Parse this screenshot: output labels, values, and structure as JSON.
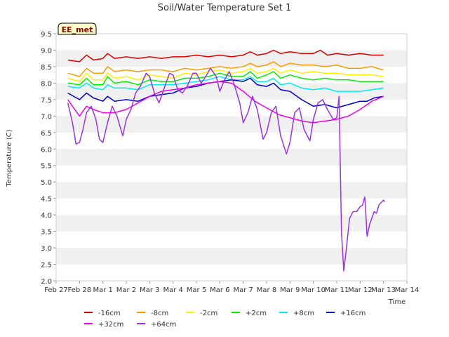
{
  "chart_data": {
    "type": "line",
    "title": "Soil/Water Temperature Set 1",
    "xlabel": "Time",
    "ylabel": "Temperature (C)",
    "ylim": [
      2.0,
      9.5
    ],
    "yticks": [
      "2.0",
      "2.5",
      "3.0",
      "3.5",
      "4.0",
      "4.5",
      "5.0",
      "5.5",
      "6.0",
      "6.5",
      "7.0",
      "7.5",
      "8.0",
      "8.5",
      "9.0",
      "9.5"
    ],
    "xlim": [
      0,
      15
    ],
    "xticks": [
      "Feb 27",
      "Feb 28",
      "Mar 1",
      "Mar 2",
      "Mar 3",
      "Mar 4",
      "Mar 5",
      "Mar 6",
      "Mar 7",
      "Mar 8",
      "Mar 9",
      "Mar 10",
      "Mar 11",
      "Mar 12",
      "Mar 13",
      "Mar 14"
    ],
    "grid": "horizontal alternating bands",
    "annotation": "EE_met",
    "series": [
      {
        "name": "-16cm",
        "color": "#dd0000",
        "x": [
          0.5,
          1.0,
          1.3,
          1.6,
          2.0,
          2.2,
          2.5,
          3.0,
          3.5,
          4.0,
          4.5,
          5.0,
          5.5,
          6.0,
          6.5,
          7.0,
          7.5,
          8.0,
          8.3,
          8.6,
          9.0,
          9.3,
          9.6,
          10.0,
          10.5,
          11.0,
          11.3,
          11.6,
          12.0,
          12.5,
          13.0,
          13.5,
          14.0
        ],
        "y": [
          8.7,
          8.65,
          8.85,
          8.7,
          8.75,
          8.9,
          8.75,
          8.8,
          8.75,
          8.8,
          8.75,
          8.8,
          8.8,
          8.85,
          8.8,
          8.85,
          8.8,
          8.85,
          8.95,
          8.85,
          8.9,
          9.0,
          8.9,
          8.95,
          8.9,
          8.9,
          9.0,
          8.85,
          8.9,
          8.85,
          8.9,
          8.85,
          8.85
        ]
      },
      {
        "name": "-8cm",
        "color": "#ff9900",
        "x": [
          0.5,
          1.0,
          1.3,
          1.6,
          2.0,
          2.2,
          2.5,
          3.0,
          3.5,
          4.0,
          4.5,
          5.0,
          5.5,
          6.0,
          6.5,
          7.0,
          7.5,
          8.0,
          8.3,
          8.6,
          9.0,
          9.3,
          9.6,
          10.0,
          10.5,
          11.0,
          11.5,
          12.0,
          12.5,
          13.0,
          13.5,
          14.0
        ],
        "y": [
          8.3,
          8.2,
          8.45,
          8.3,
          8.3,
          8.5,
          8.35,
          8.4,
          8.35,
          8.4,
          8.4,
          8.35,
          8.45,
          8.4,
          8.45,
          8.5,
          8.45,
          8.5,
          8.6,
          8.5,
          8.55,
          8.65,
          8.5,
          8.6,
          8.55,
          8.55,
          8.5,
          8.55,
          8.45,
          8.45,
          8.5,
          8.4
        ]
      },
      {
        "name": "-2cm",
        "color": "#ffee00",
        "x": [
          0.5,
          1.0,
          1.3,
          1.6,
          2.0,
          2.2,
          2.5,
          3.0,
          3.5,
          4.0,
          4.5,
          5.0,
          5.5,
          6.0,
          6.5,
          7.0,
          7.5,
          8.0,
          8.3,
          8.6,
          9.0,
          9.3,
          9.6,
          10.0,
          10.5,
          11.0,
          11.5,
          12.0,
          12.5,
          13.0,
          13.5,
          14.0
        ],
        "y": [
          8.15,
          8.05,
          8.3,
          8.1,
          8.1,
          8.3,
          8.15,
          8.2,
          8.1,
          8.25,
          8.2,
          8.15,
          8.3,
          8.25,
          8.35,
          8.4,
          8.3,
          8.35,
          8.45,
          8.3,
          8.35,
          8.45,
          8.3,
          8.4,
          8.3,
          8.35,
          8.3,
          8.3,
          8.25,
          8.25,
          8.25,
          8.2
        ]
      },
      {
        "name": "+2cm",
        "color": "#00ee00",
        "x": [
          0.5,
          1.0,
          1.3,
          1.6,
          2.0,
          2.2,
          2.5,
          3.0,
          3.5,
          4.0,
          4.5,
          5.0,
          5.5,
          6.0,
          6.5,
          7.0,
          7.5,
          8.0,
          8.3,
          8.6,
          9.0,
          9.3,
          9.6,
          10.0,
          10.5,
          11.0,
          11.5,
          12.0,
          12.5,
          13.0,
          13.5,
          14.0
        ],
        "y": [
          8.0,
          7.95,
          8.15,
          7.95,
          7.95,
          8.2,
          8.0,
          8.05,
          7.95,
          8.1,
          8.05,
          8.05,
          8.15,
          8.15,
          8.2,
          8.3,
          8.2,
          8.2,
          8.35,
          8.15,
          8.25,
          8.35,
          8.15,
          8.25,
          8.15,
          8.1,
          8.15,
          8.1,
          8.1,
          8.05,
          8.05,
          8.05
        ]
      },
      {
        "name": "+8cm",
        "color": "#00eeee",
        "x": [
          0.5,
          1.0,
          1.3,
          1.6,
          2.0,
          2.2,
          2.5,
          3.0,
          3.5,
          4.0,
          4.5,
          5.0,
          5.5,
          6.0,
          6.5,
          7.0,
          7.5,
          8.0,
          8.3,
          8.6,
          9.0,
          9.3,
          9.6,
          10.0,
          10.5,
          11.0,
          11.5,
          12.0,
          12.5,
          13.0,
          13.5,
          14.0
        ],
        "y": [
          7.9,
          7.85,
          8.0,
          7.85,
          7.8,
          7.95,
          7.85,
          7.85,
          7.8,
          7.95,
          7.95,
          7.95,
          8.0,
          8.05,
          8.1,
          8.2,
          8.1,
          8.1,
          8.2,
          8.05,
          8.05,
          8.15,
          7.95,
          8.0,
          7.85,
          7.8,
          7.85,
          7.75,
          7.75,
          7.75,
          7.8,
          7.85
        ]
      },
      {
        "name": "+16cm",
        "color": "#0000cc",
        "x": [
          0.5,
          1.0,
          1.3,
          1.6,
          2.0,
          2.2,
          2.5,
          3.0,
          3.5,
          4.0,
          4.5,
          5.0,
          5.5,
          6.0,
          6.5,
          7.0,
          7.5,
          8.0,
          8.3,
          8.6,
          9.0,
          9.3,
          9.6,
          10.0,
          10.5,
          11.0,
          11.5,
          12.0,
          12.5,
          13.0,
          13.3,
          13.6,
          14.0
        ],
        "y": [
          7.7,
          7.5,
          7.7,
          7.55,
          7.45,
          7.6,
          7.45,
          7.5,
          7.45,
          7.6,
          7.65,
          7.7,
          7.85,
          7.9,
          8.0,
          8.05,
          8.1,
          8.05,
          8.15,
          7.95,
          7.9,
          8.0,
          7.8,
          7.75,
          7.5,
          7.3,
          7.35,
          7.25,
          7.35,
          7.45,
          7.45,
          7.55,
          7.6
        ]
      },
      {
        "name": "+32cm",
        "color": "#ee00ee",
        "x": [
          0.5,
          1.0,
          1.3,
          1.6,
          2.0,
          2.5,
          3.0,
          3.5,
          4.0,
          4.5,
          5.0,
          5.5,
          6.0,
          6.5,
          7.0,
          7.5,
          8.0,
          8.5,
          9.0,
          9.5,
          10.0,
          10.5,
          11.0,
          11.5,
          12.0,
          12.5,
          13.0,
          13.5,
          14.0
        ],
        "y": [
          7.5,
          7.0,
          7.3,
          7.2,
          7.1,
          7.1,
          7.2,
          7.4,
          7.6,
          7.75,
          7.8,
          7.85,
          7.95,
          8.0,
          8.05,
          8.0,
          7.75,
          7.45,
          7.25,
          7.05,
          6.95,
          6.85,
          6.8,
          6.85,
          6.9,
          7.0,
          7.2,
          7.45,
          7.6
        ]
      },
      {
        "name": "+64cm",
        "color": "#9933dd",
        "x": [
          0.5,
          0.7,
          0.85,
          1.0,
          1.15,
          1.3,
          1.5,
          1.7,
          1.85,
          2.0,
          2.2,
          2.4,
          2.6,
          2.85,
          3.0,
          3.2,
          3.4,
          3.6,
          3.85,
          4.0,
          4.2,
          4.4,
          4.6,
          4.85,
          5.0,
          5.2,
          5.4,
          5.6,
          5.85,
          6.0,
          6.2,
          6.4,
          6.6,
          6.85,
          7.0,
          7.2,
          7.4,
          7.6,
          7.85,
          8.0,
          8.2,
          8.4,
          8.6,
          8.85,
          9.0,
          9.2,
          9.4,
          9.6,
          9.85,
          10.0,
          10.2,
          10.4,
          10.6,
          10.85,
          11.0,
          11.2,
          11.4,
          11.6,
          11.85,
          12.0,
          12.1,
          12.2,
          12.3,
          12.4,
          12.55,
          12.7,
          12.85,
          13.0,
          13.1,
          13.2,
          13.3,
          13.4,
          13.5,
          13.6,
          13.7,
          13.8,
          14.0,
          14.05
        ],
        "y": [
          7.4,
          6.8,
          6.15,
          6.2,
          6.6,
          7.1,
          7.3,
          6.9,
          6.3,
          6.2,
          6.8,
          7.3,
          7.0,
          6.4,
          6.9,
          7.2,
          7.7,
          7.9,
          8.3,
          8.2,
          7.7,
          7.4,
          7.8,
          8.3,
          8.25,
          7.8,
          7.7,
          7.9,
          8.3,
          8.3,
          8.0,
          8.2,
          8.45,
          8.2,
          7.75,
          8.1,
          8.35,
          8.0,
          7.4,
          6.8,
          7.1,
          7.6,
          7.2,
          6.3,
          6.5,
          7.1,
          7.3,
          6.4,
          5.85,
          6.2,
          7.1,
          7.25,
          6.6,
          6.25,
          6.9,
          7.4,
          7.5,
          7.2,
          6.9,
          6.95,
          7.6,
          3.5,
          2.3,
          2.9,
          3.9,
          4.1,
          4.1,
          4.25,
          4.3,
          4.55,
          3.35,
          3.7,
          3.9,
          4.1,
          4.05,
          4.3,
          4.45,
          4.4
        ]
      }
    ]
  }
}
